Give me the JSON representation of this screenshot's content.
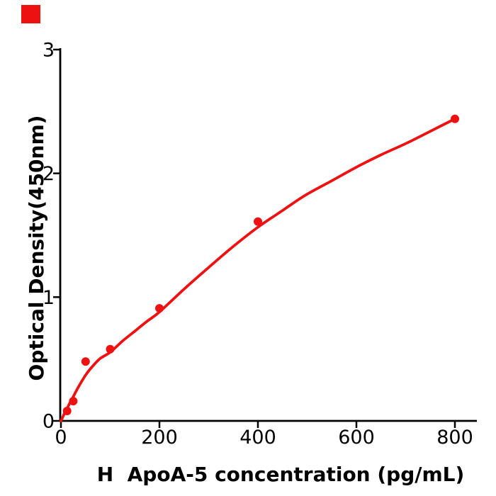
{
  "figure": {
    "background": "#ffffff",
    "marker_square": {
      "color": "#ee1111"
    }
  },
  "chart_data": {
    "type": "scatter",
    "title": "",
    "xlabel": "H  ApoA-5 concentration (pg/mL)",
    "ylabel": "Optical Density(450nm)",
    "x_ticks": [
      0,
      200,
      400,
      600,
      800
    ],
    "y_ticks": [
      0,
      1,
      2,
      3
    ],
    "xlim": [
      0,
      845
    ],
    "ylim": [
      0,
      3
    ],
    "grid": false,
    "legend_position": "none",
    "axis_color": "#000000",
    "series": [
      {
        "name": "standard-points",
        "type": "scatter",
        "color": "#ee1111",
        "points": [
          {
            "x": 12.5,
            "y": 0.08
          },
          {
            "x": 25,
            "y": 0.16
          },
          {
            "x": 50,
            "y": 0.48
          },
          {
            "x": 100,
            "y": 0.58
          },
          {
            "x": 200,
            "y": 0.91
          },
          {
            "x": 400,
            "y": 1.61
          },
          {
            "x": 800,
            "y": 2.44
          }
        ]
      },
      {
        "name": "fit-curve",
        "type": "line",
        "color": "#ee1111",
        "points": [
          {
            "x": 0,
            "y": 0
          },
          {
            "x": 3,
            "y": 0.025
          },
          {
            "x": 7,
            "y": 0.06
          },
          {
            "x": 12.5,
            "y": 0.1
          },
          {
            "x": 18,
            "y": 0.145
          },
          {
            "x": 25,
            "y": 0.195
          },
          {
            "x": 35,
            "y": 0.27
          },
          {
            "x": 50,
            "y": 0.37
          },
          {
            "x": 65,
            "y": 0.445
          },
          {
            "x": 80,
            "y": 0.505
          },
          {
            "x": 100,
            "y": 0.555
          },
          {
            "x": 125,
            "y": 0.645
          },
          {
            "x": 150,
            "y": 0.725
          },
          {
            "x": 175,
            "y": 0.805
          },
          {
            "x": 200,
            "y": 0.88
          },
          {
            "x": 250,
            "y": 1.065
          },
          {
            "x": 300,
            "y": 1.24
          },
          {
            "x": 350,
            "y": 1.41
          },
          {
            "x": 400,
            "y": 1.565
          },
          {
            "x": 450,
            "y": 1.7
          },
          {
            "x": 495,
            "y": 1.82
          },
          {
            "x": 550,
            "y": 1.94
          },
          {
            "x": 600,
            "y": 2.05
          },
          {
            "x": 650,
            "y": 2.15
          },
          {
            "x": 700,
            "y": 2.24
          },
          {
            "x": 750,
            "y": 2.34
          },
          {
            "x": 800,
            "y": 2.44
          }
        ]
      }
    ]
  }
}
